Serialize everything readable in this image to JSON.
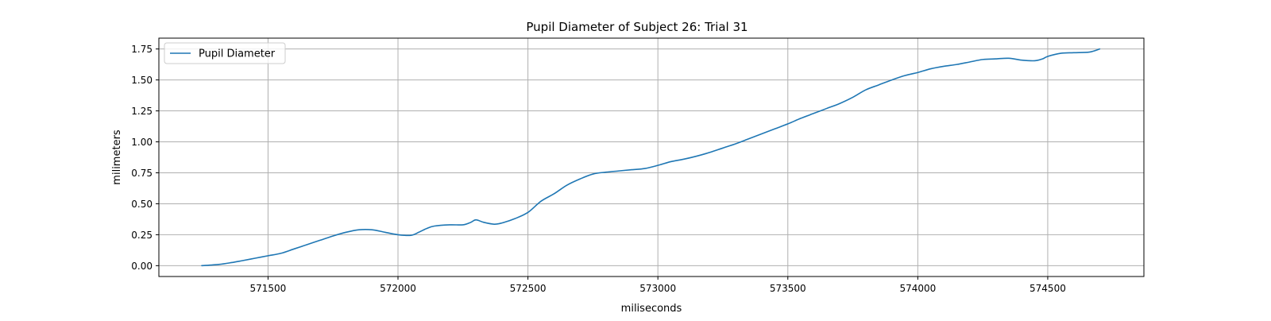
{
  "chart_data": {
    "type": "line",
    "title": "Pupil Diameter of Subject 26: Trial 31",
    "xlabel": "miliseconds",
    "ylabel": "milimeters",
    "xlim": [
      571080,
      574870
    ],
    "ylim": [
      -0.0875,
      1.8375
    ],
    "xticks": [
      571500,
      572000,
      572500,
      573000,
      573500,
      574000,
      574500
    ],
    "yticks": [
      0.0,
      0.25,
      0.5,
      0.75,
      1.0,
      1.25,
      1.5,
      1.75
    ],
    "ytick_labels": [
      "0.00",
      "0.25",
      "0.50",
      "0.75",
      "1.00",
      "1.25",
      "1.50",
      "1.75"
    ],
    "grid": true,
    "legend": {
      "position": "upper-left",
      "entries": [
        "Pupil Diameter"
      ]
    },
    "colors": {
      "line": "#1f77b4"
    },
    "series": [
      {
        "name": "Pupil Diameter",
        "x": [
          571245,
          571310,
          571360,
          571400,
          571450,
          571500,
          571550,
          571600,
          571650,
          571700,
          571750,
          571800,
          571850,
          571900,
          571950,
          572000,
          572050,
          572080,
          572110,
          572140,
          572200,
          572250,
          572280,
          572300,
          572330,
          572370,
          572400,
          572450,
          572500,
          572550,
          572600,
          572650,
          572700,
          572750,
          572800,
          572850,
          572900,
          572950,
          573000,
          573050,
          573100,
          573150,
          573200,
          573250,
          573300,
          573350,
          573400,
          573450,
          573500,
          573550,
          573600,
          573650,
          573700,
          573750,
          573800,
          573850,
          573900,
          573950,
          574000,
          574050,
          574100,
          574150,
          574200,
          574250,
          574300,
          574350,
          574400,
          574450,
          574480,
          574500,
          574550,
          574600,
          574660,
          574700
        ],
        "y": [
          0.0,
          0.01,
          0.025,
          0.04,
          0.06,
          0.08,
          0.1,
          0.135,
          0.17,
          0.205,
          0.24,
          0.27,
          0.29,
          0.29,
          0.27,
          0.25,
          0.245,
          0.27,
          0.3,
          0.32,
          0.33,
          0.33,
          0.35,
          0.37,
          0.35,
          0.335,
          0.345,
          0.38,
          0.43,
          0.52,
          0.58,
          0.65,
          0.7,
          0.74,
          0.755,
          0.765,
          0.775,
          0.785,
          0.81,
          0.84,
          0.86,
          0.885,
          0.915,
          0.95,
          0.985,
          1.025,
          1.065,
          1.105,
          1.145,
          1.19,
          1.23,
          1.27,
          1.31,
          1.36,
          1.42,
          1.46,
          1.5,
          1.535,
          1.56,
          1.59,
          1.61,
          1.625,
          1.645,
          1.665,
          1.67,
          1.675,
          1.66,
          1.655,
          1.67,
          1.69,
          1.715,
          1.72,
          1.725,
          1.75
        ]
      }
    ]
  }
}
